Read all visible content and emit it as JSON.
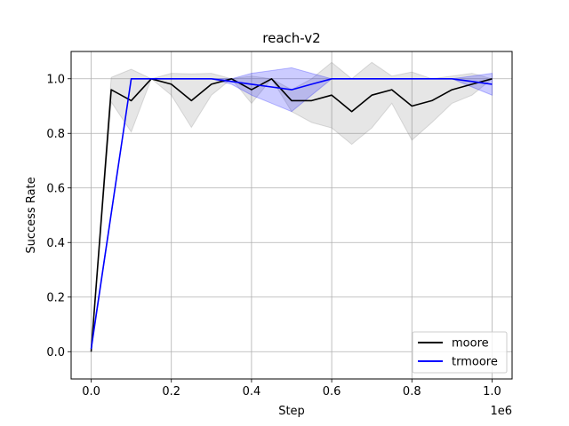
{
  "chart_data": {
    "type": "line",
    "title": "reach-v2",
    "xlabel": "Step",
    "ylabel": "Success Rate",
    "x_offset_text": "1e6",
    "xlim": [
      -0.05,
      1.05
    ],
    "ylim": [
      -0.1,
      1.1
    ],
    "xticks": [
      0.0,
      0.2,
      0.4,
      0.6,
      0.8,
      1.0
    ],
    "xtick_labels": [
      "0.0",
      "0.2",
      "0.4",
      "0.6",
      "0.8",
      "1.0"
    ],
    "yticks": [
      0.0,
      0.2,
      0.4,
      0.6,
      0.8,
      1.0
    ],
    "ytick_labels": [
      "0.0",
      "0.2",
      "0.4",
      "0.6",
      "0.8",
      "1.0"
    ],
    "grid": true,
    "legend_position": "lower-right",
    "series": [
      {
        "name": "moore",
        "color": "#000000",
        "band_color": "#808080",
        "x": [
          0.0,
          0.05,
          0.1,
          0.15,
          0.2,
          0.25,
          0.3,
          0.35,
          0.4,
          0.45,
          0.5,
          0.55,
          0.6,
          0.65,
          0.7,
          0.75,
          0.8,
          0.85,
          0.9,
          0.95,
          1.0
        ],
        "y": [
          0.0,
          0.96,
          0.92,
          1.0,
          0.98,
          0.92,
          0.98,
          1.0,
          0.96,
          1.0,
          0.92,
          0.92,
          0.94,
          0.88,
          0.94,
          0.96,
          0.9,
          0.92,
          0.96,
          0.98,
          1.0
        ],
        "upper": [
          0.0,
          1.005,
          1.035,
          1.0,
          1.02,
          1.018,
          1.02,
          1.0,
          1.01,
          1.0,
          0.96,
          1.0,
          1.06,
          1.0,
          1.06,
          1.01,
          1.025,
          1.0,
          1.01,
          1.02,
          1.0
        ],
        "lower": [
          0.0,
          0.915,
          0.805,
          1.0,
          0.94,
          0.822,
          0.94,
          1.0,
          0.91,
          1.0,
          0.88,
          0.84,
          0.82,
          0.76,
          0.82,
          0.91,
          0.775,
          0.84,
          0.91,
          0.94,
          1.0
        ]
      },
      {
        "name": "trmoore",
        "color": "#0000ff",
        "band_color": "#0000ff",
        "x": [
          0.0,
          0.1,
          0.15,
          0.2,
          0.25,
          0.3,
          0.35,
          0.4,
          0.45,
          0.5,
          0.55,
          0.6,
          0.65,
          0.7,
          0.75,
          0.8,
          0.85,
          0.9,
          0.95,
          1.0
        ],
        "y": [
          0.01,
          1.0,
          1.0,
          1.0,
          1.0,
          1.0,
          0.99,
          0.98,
          0.97,
          0.96,
          0.98,
          1.0,
          1.0,
          1.0,
          1.0,
          1.0,
          1.0,
          1.0,
          0.99,
          0.98
        ],
        "upper": [
          0.02,
          1.0,
          1.0,
          1.0,
          1.0,
          1.0,
          1.0,
          1.02,
          1.03,
          1.04,
          1.02,
          1.0,
          1.0,
          1.0,
          1.0,
          1.0,
          1.0,
          1.0,
          1.01,
          1.02
        ],
        "lower": [
          0.0,
          1.0,
          1.0,
          1.0,
          1.0,
          1.0,
          0.98,
          0.94,
          0.91,
          0.88,
          0.94,
          1.0,
          1.0,
          1.0,
          1.0,
          1.0,
          1.0,
          1.0,
          0.97,
          0.94
        ]
      }
    ]
  }
}
